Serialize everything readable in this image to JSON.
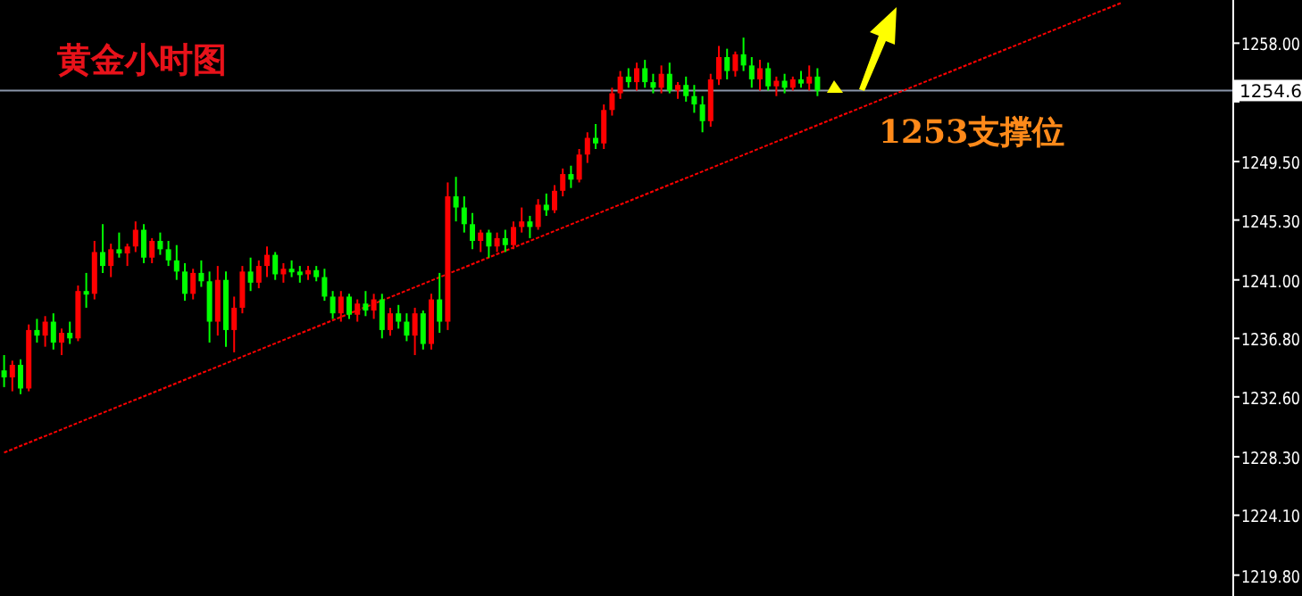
{
  "chart_data": {
    "type": "candlestick",
    "title": "黄金小时图",
    "categories": [
      null,
      null,
      null,
      null,
      null,
      null,
      null,
      null,
      null,
      null,
      null,
      null,
      null,
      null,
      null,
      null,
      null,
      null,
      null,
      null,
      null,
      null,
      null,
      null,
      null,
      null,
      null,
      null,
      null,
      null,
      null,
      null,
      null,
      null,
      null,
      null,
      null,
      null,
      null,
      null,
      null,
      null,
      null,
      null,
      null,
      null,
      null,
      null,
      null,
      null,
      null,
      null,
      null,
      null,
      null,
      null,
      null,
      null,
      null,
      null,
      null,
      null,
      null,
      null,
      null,
      null,
      null,
      null,
      null,
      null,
      null,
      null,
      null,
      null,
      null,
      null,
      null,
      null,
      null,
      null,
      null,
      null,
      null,
      null,
      null,
      null,
      null,
      null,
      null,
      null,
      null,
      null,
      null,
      null,
      null,
      null,
      null,
      null,
      null,
      null,
      null,
      null,
      null,
      null,
      null,
      null,
      null,
      null,
      null,
      null,
      null,
      null,
      null,
      null,
      null,
      null,
      null,
      null,
      null,
      null,
      null,
      null,
      null,
      null,
      null,
      null,
      null,
      null,
      null,
      null,
      null,
      null,
      null,
      null,
      null,
      null,
      null,
      null,
      null,
      null,
      null,
      null,
      null,
      null,
      null,
      null,
      null,
      null,
      null,
      null
    ],
    "ohlc": [
      [
        1234.5,
        1235.6,
        1233.3,
        1234.0
      ],
      [
        1234.0,
        1235.2,
        1233.0,
        1234.9
      ],
      [
        1234.9,
        1235.3,
        1232.8,
        1233.2
      ],
      [
        1233.2,
        1237.8,
        1233.0,
        1237.4
      ],
      [
        1237.4,
        1238.2,
        1236.5,
        1237.0
      ],
      [
        1237.0,
        1238.4,
        1236.2,
        1238.0
      ],
      [
        1238.0,
        1238.6,
        1236.0,
        1236.5
      ],
      [
        1236.5,
        1237.5,
        1235.6,
        1237.2
      ],
      [
        1237.2,
        1238.0,
        1236.4,
        1236.8
      ],
      [
        1236.8,
        1240.6,
        1236.6,
        1240.2
      ],
      [
        1240.2,
        1241.5,
        1239.0,
        1240.0
      ],
      [
        1240.0,
        1243.8,
        1239.6,
        1243.0
      ],
      [
        1243.0,
        1245.0,
        1241.5,
        1242.0
      ],
      [
        1242.0,
        1243.6,
        1241.2,
        1243.2
      ],
      [
        1243.2,
        1244.4,
        1242.6,
        1242.9
      ],
      [
        1242.9,
        1243.6,
        1242.0,
        1243.4
      ],
      [
        1243.4,
        1245.2,
        1243.0,
        1244.6
      ],
      [
        1244.6,
        1245.0,
        1242.2,
        1242.6
      ],
      [
        1242.6,
        1244.0,
        1242.2,
        1243.8
      ],
      [
        1243.8,
        1244.4,
        1242.8,
        1243.2
      ],
      [
        1243.2,
        1243.8,
        1242.0,
        1242.4
      ],
      [
        1242.4,
        1243.5,
        1241.0,
        1241.6
      ],
      [
        1241.6,
        1242.2,
        1239.5,
        1240.0
      ],
      [
        1240.0,
        1241.8,
        1239.6,
        1241.5
      ],
      [
        1241.5,
        1242.4,
        1240.5,
        1240.9
      ],
      [
        1240.9,
        1241.6,
        1236.5,
        1238.0
      ],
      [
        1238.0,
        1242.0,
        1237.0,
        1241.0
      ],
      [
        1241.0,
        1241.6,
        1236.2,
        1237.4
      ],
      [
        1237.4,
        1239.8,
        1235.8,
        1239.0
      ],
      [
        1239.0,
        1242.0,
        1238.6,
        1241.6
      ],
      [
        1241.6,
        1242.6,
        1240.2,
        1240.8
      ],
      [
        1240.8,
        1242.4,
        1240.4,
        1242.0
      ],
      [
        1242.0,
        1243.4,
        1241.2,
        1242.8
      ],
      [
        1242.8,
        1243.0,
        1241.0,
        1241.4
      ],
      [
        1241.4,
        1242.2,
        1240.8,
        1241.8
      ],
      [
        1241.8,
        1242.4,
        1241.2,
        1241.6
      ],
      [
        1241.6,
        1242.0,
        1240.8,
        1241.4
      ],
      [
        1241.4,
        1242.0,
        1241.0,
        1241.7
      ],
      [
        1241.7,
        1242.0,
        1240.9,
        1241.2
      ],
      [
        1241.2,
        1241.8,
        1239.5,
        1239.8
      ],
      [
        1239.8,
        1240.2,
        1238.2,
        1238.6
      ],
      [
        1238.6,
        1240.2,
        1238.0,
        1239.8
      ],
      [
        1239.8,
        1240.0,
        1238.2,
        1238.5
      ],
      [
        1238.5,
        1239.6,
        1238.0,
        1239.3
      ],
      [
        1239.3,
        1240.2,
        1238.4,
        1238.8
      ],
      [
        1238.8,
        1240.0,
        1238.2,
        1239.6
      ],
      [
        1239.6,
        1240.0,
        1236.8,
        1237.4
      ],
      [
        1237.4,
        1239.0,
        1237.0,
        1238.6
      ],
      [
        1238.6,
        1239.2,
        1237.5,
        1238.0
      ],
      [
        1238.0,
        1238.6,
        1236.6,
        1237.0
      ],
      [
        1237.0,
        1239.0,
        1235.6,
        1238.6
      ],
      [
        1238.6,
        1238.8,
        1236.0,
        1236.4
      ],
      [
        1236.4,
        1240.0,
        1236.0,
        1239.6
      ],
      [
        1239.6,
        1241.5,
        1237.2,
        1238.0
      ],
      [
        1238.0,
        1248.0,
        1237.4,
        1247.0
      ],
      [
        1247.0,
        1248.4,
        1245.2,
        1246.2
      ],
      [
        1246.2,
        1247.0,
        1244.4,
        1245.0
      ],
      [
        1245.0,
        1245.8,
        1243.2,
        1243.8
      ],
      [
        1243.8,
        1244.6,
        1243.0,
        1244.4
      ],
      [
        1244.4,
        1244.6,
        1242.6,
        1243.4
      ],
      [
        1243.4,
        1244.4,
        1243.0,
        1244.0
      ],
      [
        1244.0,
        1244.6,
        1243.0,
        1243.5
      ],
      [
        1243.5,
        1245.2,
        1243.2,
        1244.8
      ],
      [
        1244.8,
        1246.2,
        1244.4,
        1245.2
      ],
      [
        1245.2,
        1245.6,
        1244.0,
        1244.8
      ],
      [
        1244.8,
        1246.8,
        1244.6,
        1246.4
      ],
      [
        1246.4,
        1247.2,
        1245.6,
        1246.0
      ],
      [
        1246.0,
        1247.8,
        1245.8,
        1247.4
      ],
      [
        1247.4,
        1249.0,
        1247.0,
        1248.6
      ],
      [
        1248.6,
        1249.2,
        1247.6,
        1248.2
      ],
      [
        1248.2,
        1250.4,
        1248.0,
        1250.0
      ],
      [
        1250.0,
        1251.6,
        1249.4,
        1251.2
      ],
      [
        1251.2,
        1252.2,
        1250.4,
        1250.8
      ],
      [
        1250.8,
        1253.6,
        1250.4,
        1253.2
      ],
      [
        1253.2,
        1254.8,
        1252.8,
        1254.4
      ],
      [
        1254.4,
        1256.0,
        1254.0,
        1255.6
      ],
      [
        1255.6,
        1256.2,
        1254.8,
        1255.2
      ],
      [
        1255.2,
        1256.6,
        1254.6,
        1256.2
      ],
      [
        1256.2,
        1256.8,
        1254.8,
        1255.2
      ],
      [
        1255.2,
        1255.8,
        1254.4,
        1254.8
      ],
      [
        1254.8,
        1256.4,
        1254.4,
        1255.8
      ],
      [
        1255.8,
        1256.6,
        1254.4,
        1254.6
      ],
      [
        1254.6,
        1255.2,
        1254.0,
        1255.0
      ],
      [
        1255.0,
        1255.6,
        1253.8,
        1254.2
      ],
      [
        1254.2,
        1255.0,
        1253.0,
        1253.6
      ],
      [
        1253.6,
        1254.2,
        1251.6,
        1252.4
      ],
      [
        1252.4,
        1255.8,
        1252.0,
        1255.4
      ],
      [
        1255.4,
        1257.8,
        1255.0,
        1257.0
      ],
      [
        1257.0,
        1257.6,
        1255.4,
        1256.0
      ],
      [
        1256.0,
        1257.4,
        1255.6,
        1257.2
      ],
      [
        1257.2,
        1258.4,
        1256.0,
        1256.4
      ],
      [
        1256.4,
        1257.0,
        1254.8,
        1255.4
      ],
      [
        1255.4,
        1256.8,
        1254.6,
        1256.2
      ],
      [
        1256.2,
        1256.6,
        1254.6,
        1254.9
      ],
      [
        1254.9,
        1255.6,
        1254.2,
        1255.3
      ],
      [
        1255.3,
        1255.8,
        1254.4,
        1254.8
      ],
      [
        1254.8,
        1255.6,
        1254.6,
        1255.4
      ],
      [
        1255.4,
        1256.0,
        1254.8,
        1255.1
      ],
      [
        1255.1,
        1256.4,
        1254.6,
        1255.6
      ],
      [
        1255.6,
        1256.2,
        1254.2,
        1254.6
      ],
      null,
      null,
      null,
      null,
      null,
      null,
      null,
      null,
      null,
      null,
      null,
      null,
      null,
      null,
      null,
      null,
      null,
      null,
      null,
      null,
      null,
      null,
      null,
      null,
      null,
      null,
      null,
      null,
      null,
      null,
      null,
      null,
      null,
      null,
      null,
      null,
      null,
      null,
      null,
      null,
      null,
      null,
      null,
      null,
      null,
      null,
      null,
      null,
      null,
      null
    ],
    "colors": [
      "#00ff00",
      "#ff0000",
      "#00ff00",
      "#ff0000",
      "#00ff00",
      "#ff0000",
      "#00ff00",
      "#ff0000",
      "#00ff00",
      "#ff0000",
      "#00ff00",
      "#ff0000",
      "#00ff00",
      "#ff0000",
      "#00ff00",
      "#ff0000",
      "#ff0000",
      "#00ff00",
      "#ff0000",
      "#00ff00",
      "#00ff00",
      "#00ff00",
      "#00ff00",
      "#ff0000",
      "#00ff00",
      "#00ff00",
      "#ff0000",
      "#00ff00",
      "#ff0000",
      "#ff0000",
      "#00ff00",
      "#ff0000",
      "#ff0000",
      "#00ff00",
      "#ff0000",
      "#00ff00",
      "#00ff00",
      "#ff0000",
      "#00ff00",
      "#00ff00",
      "#00ff00",
      "#ff0000",
      "#00ff00",
      "#ff0000",
      "#00ff00",
      "#ff0000",
      "#00ff00",
      "#ff0000",
      "#00ff00",
      "#00ff00",
      "#ff0000",
      "#00ff00",
      "#ff0000",
      "#00ff00",
      "#ff0000",
      "#00ff00",
      "#00ff00",
      "#00ff00",
      "#ff0000",
      "#00ff00",
      "#ff0000",
      "#00ff00",
      "#ff0000",
      "#ff0000",
      "#00ff00",
      "#ff0000",
      "#00ff00",
      "#ff0000",
      "#ff0000",
      "#00ff00",
      "#ff0000",
      "#ff0000",
      "#00ff00",
      "#ff0000",
      "#ff0000",
      "#ff0000",
      "#00ff00",
      "#ff0000",
      "#00ff00",
      "#00ff00",
      "#ff0000",
      "#00ff00",
      "#ff0000",
      "#00ff00",
      "#00ff00",
      "#00ff00",
      "#ff0000",
      "#ff0000",
      "#00ff00",
      "#ff0000",
      "#00ff00",
      "#00ff00",
      "#ff0000",
      "#00ff00",
      "#ff0000",
      "#00ff00",
      "#ff0000",
      "#00ff00",
      "#ff0000",
      "#00ff00",
      null,
      null,
      null,
      null,
      null,
      null,
      null,
      null,
      null,
      null,
      null,
      null,
      null,
      null,
      null,
      null,
      null,
      null,
      null,
      null,
      null,
      null,
      null,
      null,
      null,
      null,
      null,
      null,
      null,
      null,
      null,
      null,
      null,
      null,
      null,
      null,
      null,
      null,
      null,
      null,
      null,
      null,
      null,
      null,
      null,
      null,
      null,
      null,
      null,
      null
    ],
    "series": [
      {
        "type": "line",
        "color": "#ff0000",
        "line_style": "dashed",
        "values": [
          1228.6,
          null,
          null,
          null,
          null,
          null,
          null,
          null,
          null,
          null,
          null,
          null,
          null,
          null,
          null,
          null,
          null,
          null,
          null,
          null,
          null,
          null,
          null,
          null,
          null,
          null,
          null,
          null,
          null,
          null,
          null,
          null,
          null,
          null,
          null,
          null,
          null,
          null,
          null,
          null,
          null,
          null,
          null,
          null,
          null,
          null,
          null,
          null,
          null,
          null,
          null,
          null,
          null,
          null,
          null,
          null,
          null,
          null,
          null,
          null,
          null,
          null,
          null,
          null,
          null,
          null,
          null,
          null,
          null,
          null,
          null,
          null,
          null,
          null,
          null,
          null,
          null,
          null,
          null,
          null,
          null,
          null,
          null,
          null,
          null,
          null,
          null,
          null,
          null,
          null,
          null,
          null,
          null,
          null,
          null,
          null,
          null,
          null,
          null,
          null,
          null,
          null,
          null,
          null,
          null,
          null,
          null,
          null,
          null,
          null,
          null,
          null,
          null,
          null,
          null,
          null,
          null,
          null,
          null,
          null,
          null,
          null,
          null,
          null,
          null,
          null,
          null,
          null,
          null,
          null,
          null,
          null,
          null,
          null,
          null,
          null,
          1260.9,
          null,
          null,
          null,
          null,
          null,
          null,
          null,
          null,
          null,
          null,
          null,
          null,
          null
        ]
      }
    ],
    "ylim": [
      1218.3,
      1261.1
    ],
    "yticks": [
      {
        "value": 1258.0,
        "label": "1258.00"
      },
      {
        "value": 1253.8,
        "label": null
      },
      {
        "value": 1249.5,
        "label": "1249.50"
      },
      {
        "value": 1245.3,
        "label": "1245.30"
      },
      {
        "value": 1241.0,
        "label": "1241.00"
      },
      {
        "value": 1236.8,
        "label": "1236.80"
      },
      {
        "value": 1232.6,
        "label": "1232.60"
      },
      {
        "value": 1228.3,
        "label": "1228.30"
      },
      {
        "value": 1224.1,
        "label": "1224.10"
      },
      {
        "value": 1219.8,
        "label": "1219.80"
      }
    ],
    "tick_labels": "y",
    "ref_lines": [
      {
        "axis": "y",
        "value": 1254.6,
        "label": "1254.6",
        "color": "#8a96aa"
      }
    ],
    "annotations": [
      "1253支撑位"
    ]
  }
}
